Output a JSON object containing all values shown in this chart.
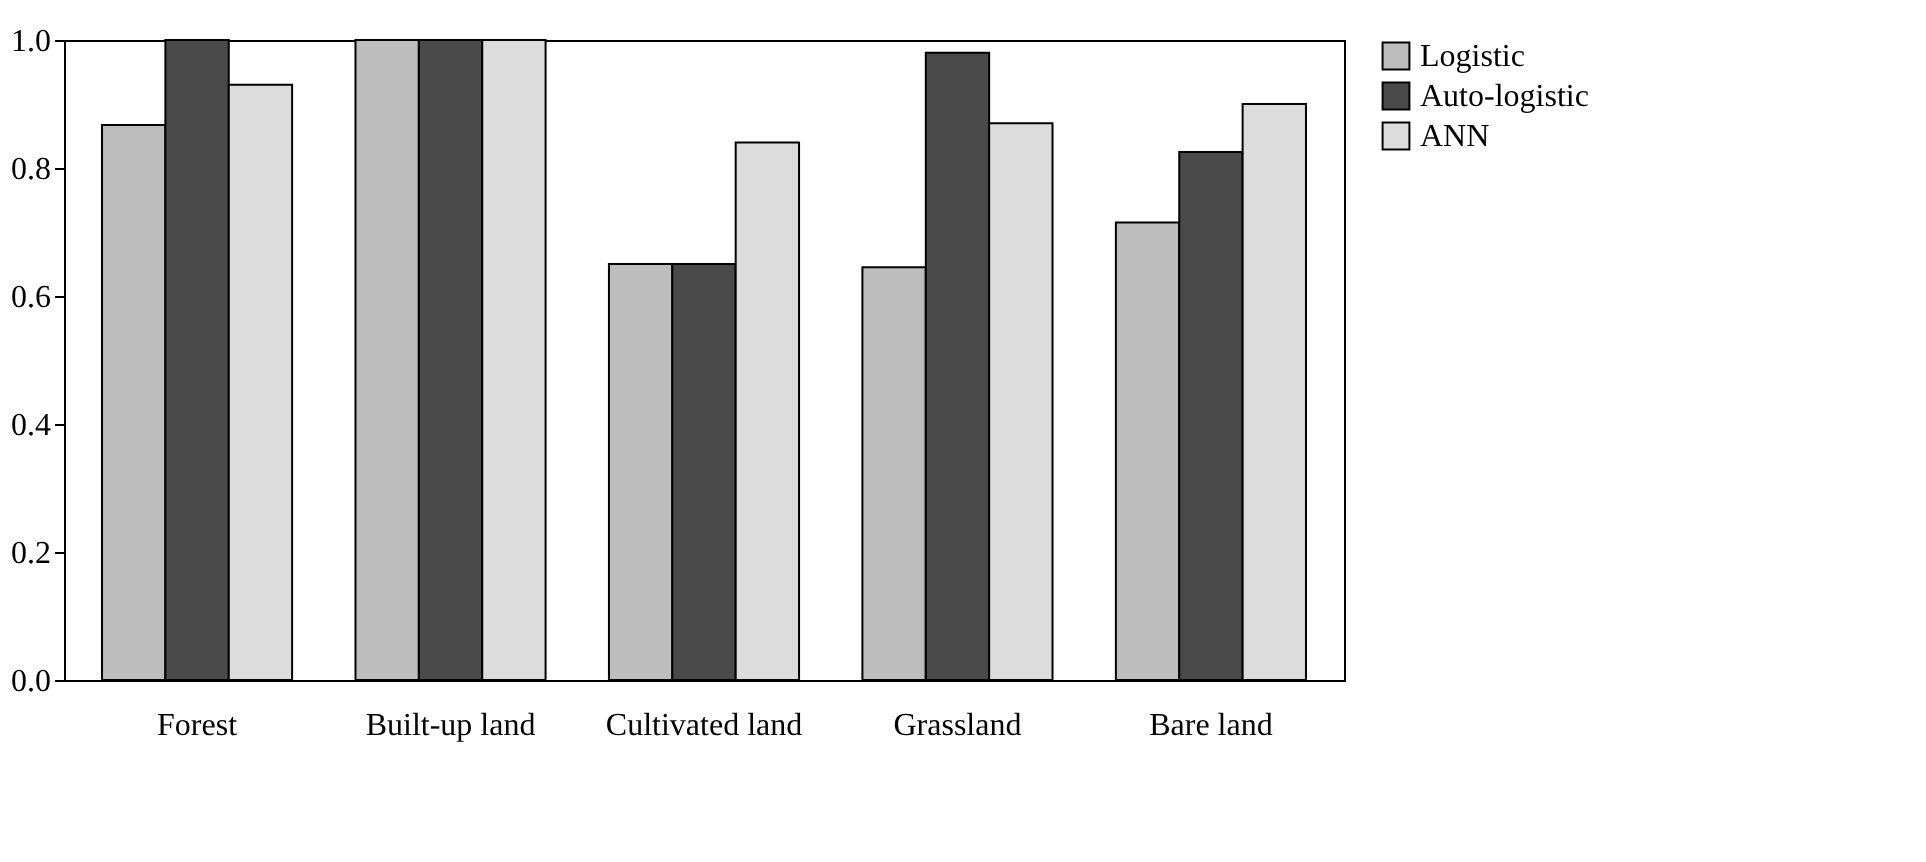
{
  "chart_data": {
    "type": "bar",
    "categories": [
      "Forest",
      "Built-up land",
      "Cultivated land",
      "Grassland",
      "Bare land"
    ],
    "series": [
      {
        "name": "Logistic",
        "color": "#bdbdbd",
        "values": [
          0.867,
          1.0,
          0.65,
          0.645,
          0.715
        ]
      },
      {
        "name": "Auto-logistic",
        "color": "#4a4a4a",
        "values": [
          1.0,
          1.0,
          0.65,
          0.98,
          0.825
        ]
      },
      {
        "name": "ANN",
        "color": "#dcdcdc",
        "values": [
          0.93,
          1.0,
          0.84,
          0.87,
          0.9
        ]
      }
    ],
    "ylim": [
      0,
      1.0
    ],
    "yticks": [
      {
        "value": 0,
        "label": "0.0"
      },
      {
        "value": 0.2,
        "label": "0.2"
      },
      {
        "value": 0.4,
        "label": "0.4"
      },
      {
        "value": 0.6,
        "label": "0.6"
      },
      {
        "value": 0.8,
        "label": "0.8"
      },
      {
        "value": 1.0,
        "label": "1.0"
      }
    ],
    "grid": false,
    "legend": "right"
  }
}
